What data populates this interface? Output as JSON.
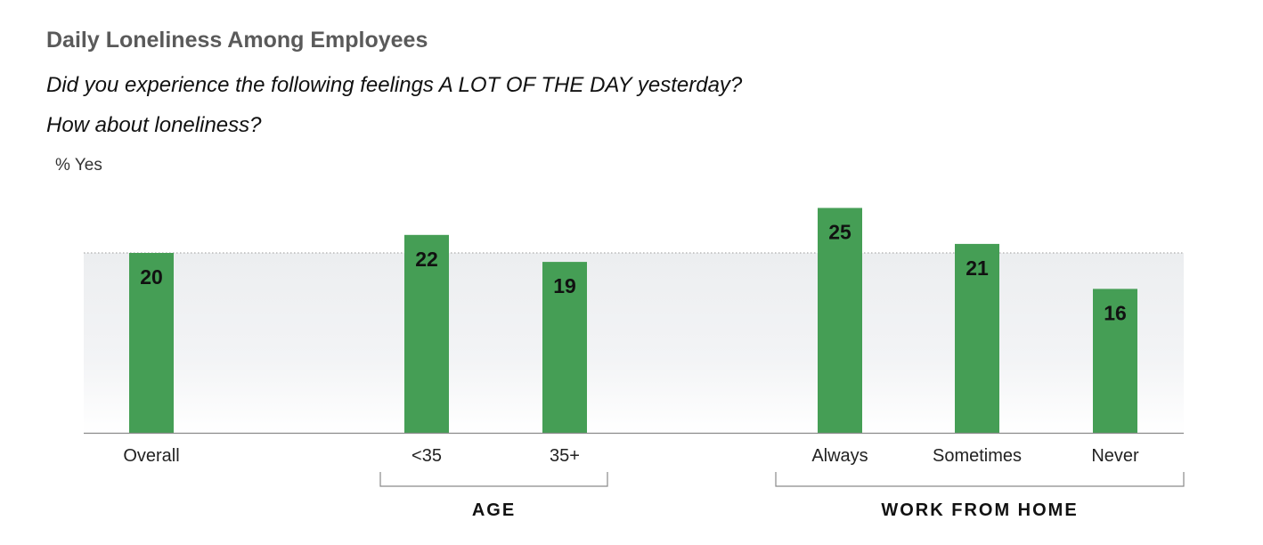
{
  "header": {
    "title": "Daily Loneliness Among Employees",
    "question_line1": "Did you experience the following feelings A LOT OF THE DAY yesterday?",
    "question_line2": "How about loneliness?",
    "unit_label": "% Yes"
  },
  "chart_data": {
    "type": "bar",
    "title": "Daily Loneliness Among Employees",
    "ylabel": "% Yes",
    "xlabel": "",
    "categories": [
      "Overall",
      "<35",
      "35+",
      "Always",
      "Sometimes",
      "Never"
    ],
    "values": [
      20,
      22,
      19,
      25,
      21,
      16
    ],
    "ylim": [
      0,
      25
    ],
    "reference_line": 20,
    "groups": [
      {
        "label": "AGE",
        "categories": [
          "<35",
          "35+"
        ]
      },
      {
        "label": "WORK FROM HOME",
        "categories": [
          "Always",
          "Sometimes",
          "Never"
        ]
      }
    ],
    "colors": {
      "bar": "#459e55",
      "band": "#eef0f2"
    },
    "grid": false,
    "legend": "none"
  }
}
